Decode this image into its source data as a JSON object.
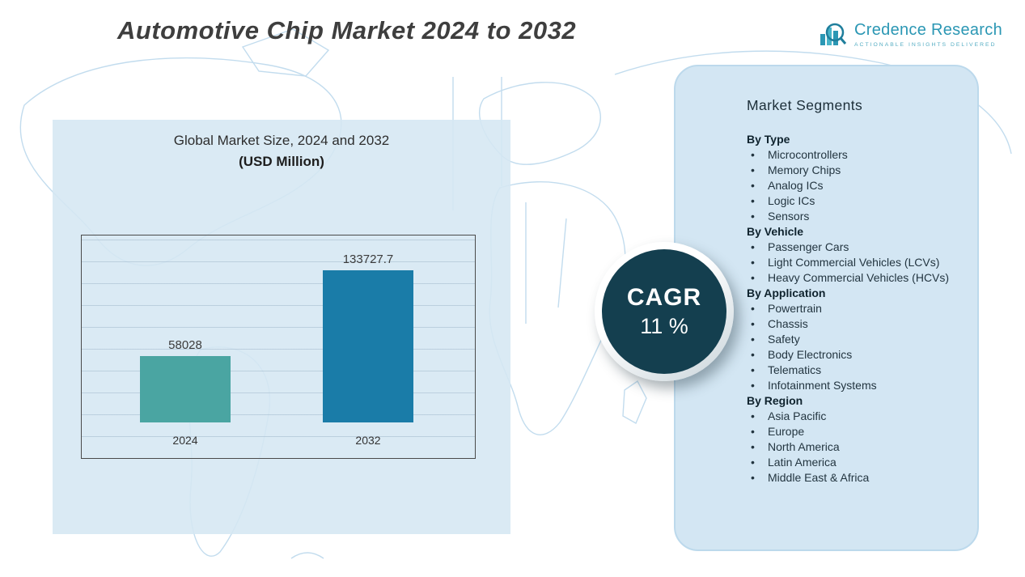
{
  "header": {
    "title": "Automotive Chip Market 2024 to 2032",
    "logo": {
      "name": "Credence Research",
      "tagline": "Actionable Insights Delivered",
      "icon": "bar-chart-magnifier",
      "brand_color": "#2b97b4"
    }
  },
  "chart_data": {
    "type": "bar",
    "title": "Global Market Size, 2024 and 2032",
    "subtitle": "(USD Million)",
    "categories": [
      "2024",
      "2032"
    ],
    "values": [
      58028,
      133727.7
    ],
    "value_labels": [
      "58028",
      "133727.7"
    ],
    "bar_colors": [
      "#4aa5a2",
      "#1a7ca8"
    ],
    "xlabel": "",
    "ylabel": "",
    "ylim": [
      0,
      140000
    ],
    "grid": true,
    "legend": "none"
  },
  "cagr": {
    "label": "CAGR",
    "value": "11 %",
    "circle_color": "#143f4f"
  },
  "segments": {
    "title": "Market Segments",
    "bullet": "•",
    "sections": [
      {
        "heading": "By Type",
        "items": [
          "Microcontrollers",
          "Memory Chips",
          "Analog ICs",
          "Logic ICs",
          "Sensors"
        ]
      },
      {
        "heading": "By Vehicle",
        "items": [
          "Passenger Cars",
          "Light Commercial Vehicles (LCVs)",
          "Heavy Commercial Vehicles (HCVs)"
        ]
      },
      {
        "heading": "By Application",
        "items": [
          "Powertrain",
          "Chassis",
          "Safety",
          "Body Electronics",
          "Telematics",
          "Infotainment Systems"
        ]
      },
      {
        "heading": "By Region",
        "items": [
          "Asia Pacific",
          "Europe",
          "North America",
          "Latin America",
          "Middle East & Africa"
        ]
      }
    ]
  },
  "colors": {
    "panel_blue": "#d3e6f3",
    "map_line": "#c2dcee",
    "title_text": "#3e3e3e"
  }
}
